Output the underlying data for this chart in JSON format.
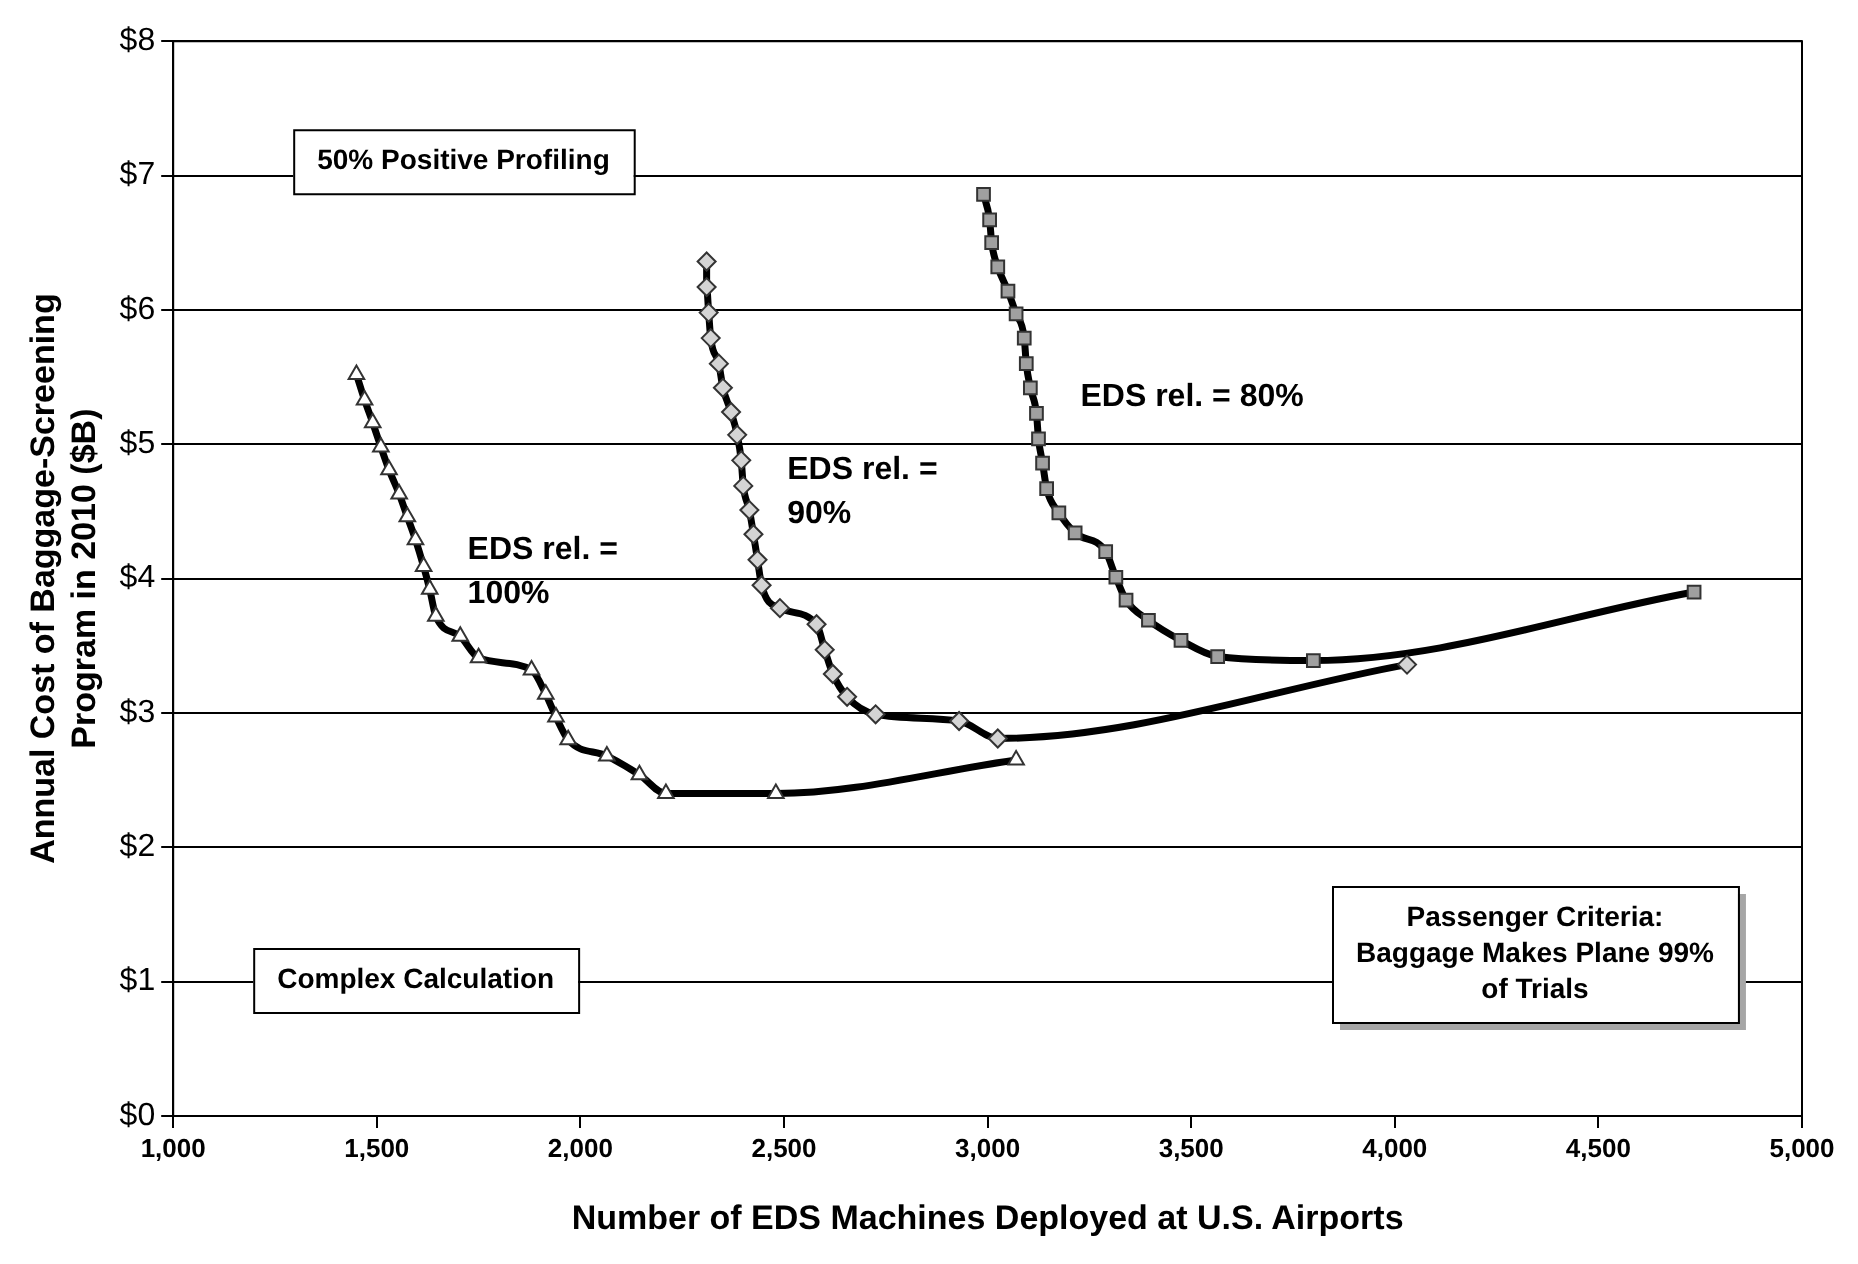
{
  "chart_data": {
    "type": "line",
    "xlabel": "Number of EDS Machines Deployed at U.S. Airports",
    "ylabel": "Annual Cost of Baggage-Screening Program in 2010 ($B)",
    "annotations": [
      "50% Positive Profiling",
      "Complex Calculation",
      "Passenger Criteria: Baggage Makes Plane 99% of Trials"
    ],
    "xlim": [
      1000,
      5000
    ],
    "xticks": [
      {
        "value": 1000,
        "label": "1,000"
      },
      {
        "value": 1500,
        "label": "1,500"
      },
      {
        "value": 2000,
        "label": "2,000"
      },
      {
        "value": 2500,
        "label": "2,500"
      },
      {
        "value": 3000,
        "label": "3,000"
      },
      {
        "value": 3500,
        "label": "3,500"
      },
      {
        "value": 4000,
        "label": "4,000"
      },
      {
        "value": 4500,
        "label": "4,500"
      },
      {
        "value": 5000,
        "label": "5,000"
      }
    ],
    "ylim": [
      0,
      8
    ],
    "yticks": [
      {
        "value": 0,
        "label": "$0"
      },
      {
        "value": 1,
        "label": "$1"
      },
      {
        "value": 2,
        "label": "$2"
      },
      {
        "value": 3,
        "label": "$3"
      },
      {
        "value": 4,
        "label": "$4"
      },
      {
        "value": 5,
        "label": "$5"
      },
      {
        "value": 6,
        "label": "$6"
      },
      {
        "value": 7,
        "label": "$7"
      },
      {
        "value": 8,
        "label": "$8"
      }
    ],
    "grid": "y",
    "legend": false,
    "series": [
      {
        "name": "EDS rel. = 100%",
        "color": "#000000",
        "marker": "triangle",
        "x": [
          1450,
          1470,
          1490,
          1510,
          1530,
          1555,
          1575,
          1595,
          1615,
          1630,
          1645,
          1705,
          1750,
          1880,
          1915,
          1940,
          1970,
          2065,
          2145,
          2210,
          2480,
          3070
        ],
        "values": [
          5.52,
          5.33,
          5.16,
          4.98,
          4.81,
          4.63,
          4.46,
          4.29,
          4.09,
          3.92,
          3.72,
          3.57,
          3.41,
          3.32,
          3.14,
          2.97,
          2.8,
          2.68,
          2.54,
          2.4,
          2.4,
          2.65
        ]
      },
      {
        "name": "EDS rel. = 90%",
        "color": "#000000",
        "marker": "diamond",
        "x": [
          2310,
          2310,
          2315,
          2320,
          2340,
          2350,
          2370,
          2385,
          2395,
          2400,
          2415,
          2425,
          2435,
          2445,
          2490,
          2580,
          2600,
          2620,
          2655,
          2725,
          2930,
          3025,
          4030
        ],
        "values": [
          6.36,
          6.17,
          5.98,
          5.79,
          5.6,
          5.42,
          5.24,
          5.07,
          4.88,
          4.69,
          4.51,
          4.33,
          4.14,
          3.95,
          3.78,
          3.66,
          3.47,
          3.29,
          3.12,
          2.99,
          2.94,
          2.81,
          3.36
        ]
      },
      {
        "name": "EDS rel. = 80%",
        "color": "#000000",
        "marker": "square",
        "x": [
          2990,
          3005,
          3010,
          3025,
          3050,
          3070,
          3090,
          3095,
          3105,
          3120,
          3125,
          3135,
          3145,
          3175,
          3215,
          3290,
          3315,
          3340,
          3395,
          3475,
          3565,
          3800,
          4735
        ],
        "values": [
          6.86,
          6.67,
          6.5,
          6.32,
          6.14,
          5.97,
          5.79,
          5.6,
          5.42,
          5.23,
          5.04,
          4.86,
          4.67,
          4.49,
          4.34,
          4.2,
          4.01,
          3.84,
          3.69,
          3.54,
          3.42,
          3.39,
          3.9
        ]
      }
    ]
  }
}
